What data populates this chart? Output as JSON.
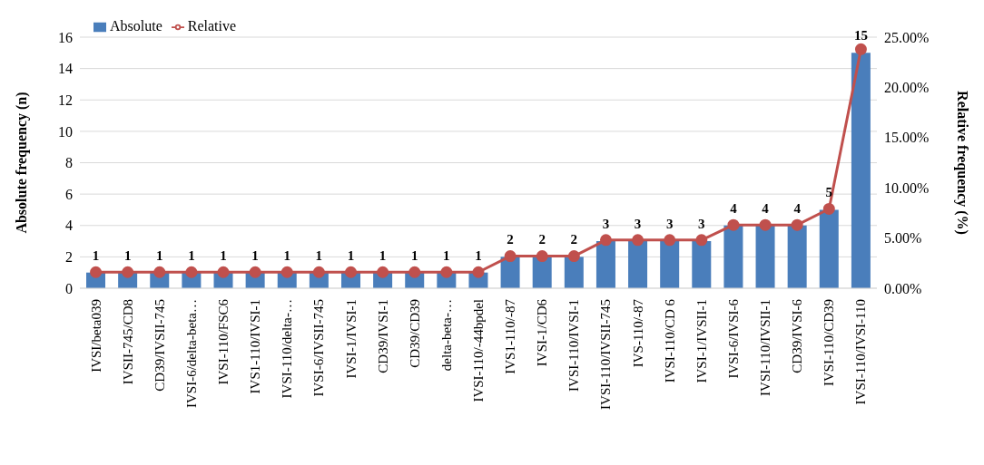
{
  "chart_data": {
    "type": "bar",
    "ylabel": "Absolute frequency (n)",
    "y2label": "Relative frequency (%)",
    "categories": [
      "IVSI/beta039",
      "IVSII-745/CD8",
      "CD39/IVSII-745",
      "IVSI-6/delta-beta…",
      "IVSI-110/FSC6",
      "IVS1-110/IVSI-1",
      "IVSI-110/delta-…",
      "IVSI-6/IVSII-745",
      "IVSI-1/IVSI-1",
      "CD39/IVSI-1",
      "CD39/CD39",
      "delta-beta-…",
      "IVSI-110/-44bpdel",
      "IVS1-110/-87",
      "IVSI-1/CD6",
      "IVSI-110/IVSI-1",
      "IVSI-110/IVSII-745",
      "IVS-110/-87",
      "IVSI-110/CD 6",
      "IVSI-1/IVSII-1",
      "IVSI-6/IVSI-6",
      "IVSI-110/IVSII-1",
      "CD39/IVSI-6",
      "IVSI-110/CD39",
      "IVSI-110/IVSI-110"
    ],
    "series": [
      {
        "name": "Absolute",
        "color": "#4a7ebb",
        "values": [
          1,
          1,
          1,
          1,
          1,
          1,
          1,
          1,
          1,
          1,
          1,
          1,
          1,
          2,
          2,
          2,
          3,
          3,
          3,
          3,
          4,
          4,
          4,
          5,
          15
        ],
        "value_labels": [
          "1",
          "1",
          "1",
          "1",
          "1",
          "1",
          "1",
          "1",
          "1",
          "1",
          "1",
          "1",
          "1",
          "2",
          "2",
          "2",
          "3",
          "3",
          "3",
          "3",
          "4",
          "4",
          "4",
          "5",
          "15"
        ]
      },
      {
        "name": "Relative",
        "type": "line",
        "axis": "y2",
        "color": "#c0504d",
        "values": [
          1.6,
          1.6,
          1.6,
          1.6,
          1.6,
          1.6,
          1.6,
          1.6,
          1.6,
          1.6,
          1.6,
          1.6,
          1.6,
          3.2,
          3.2,
          3.2,
          4.8,
          4.8,
          4.8,
          4.8,
          6.3,
          6.3,
          6.3,
          7.9,
          23.8
        ]
      }
    ],
    "ylim": [
      0,
      16
    ],
    "yticks": [
      0,
      2,
      4,
      6,
      8,
      10,
      12,
      14,
      16
    ],
    "y2lim": [
      0,
      25
    ],
    "y2ticks": [
      {
        "value": 0,
        "label": "0.00%"
      },
      {
        "value": 5,
        "label": "5.00%"
      },
      {
        "value": 10,
        "label": "10.00%"
      },
      {
        "value": 15,
        "label": "15.00%"
      },
      {
        "value": 20,
        "label": "20.00%"
      },
      {
        "value": 25,
        "label": "25.00%"
      }
    ],
    "grid": "y",
    "legend": "top left",
    "marker": "circle"
  }
}
